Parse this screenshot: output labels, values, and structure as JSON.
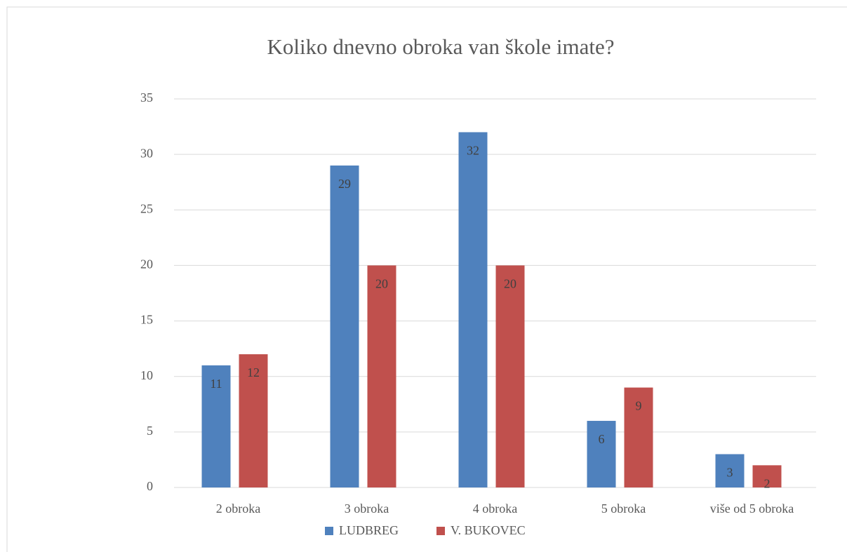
{
  "chart_data": {
    "type": "bar",
    "title": "Koliko dnevno obroka van škole imate?",
    "categories": [
      "2 obroka",
      "3 obroka",
      "4 obroka",
      "5 obroka",
      "više od 5 obroka"
    ],
    "series": [
      {
        "name": "LUDBREG",
        "color": "#4f81bd",
        "values": [
          11,
          29,
          32,
          6,
          3
        ]
      },
      {
        "name": "V. BUKOVEC",
        "color": "#c0504d",
        "values": [
          12,
          20,
          20,
          9,
          2
        ]
      }
    ],
    "ylim": [
      0,
      35
    ],
    "yticks": [
      0,
      5,
      10,
      15,
      20,
      25,
      30,
      35
    ],
    "grid": true,
    "legend": "bottom"
  }
}
